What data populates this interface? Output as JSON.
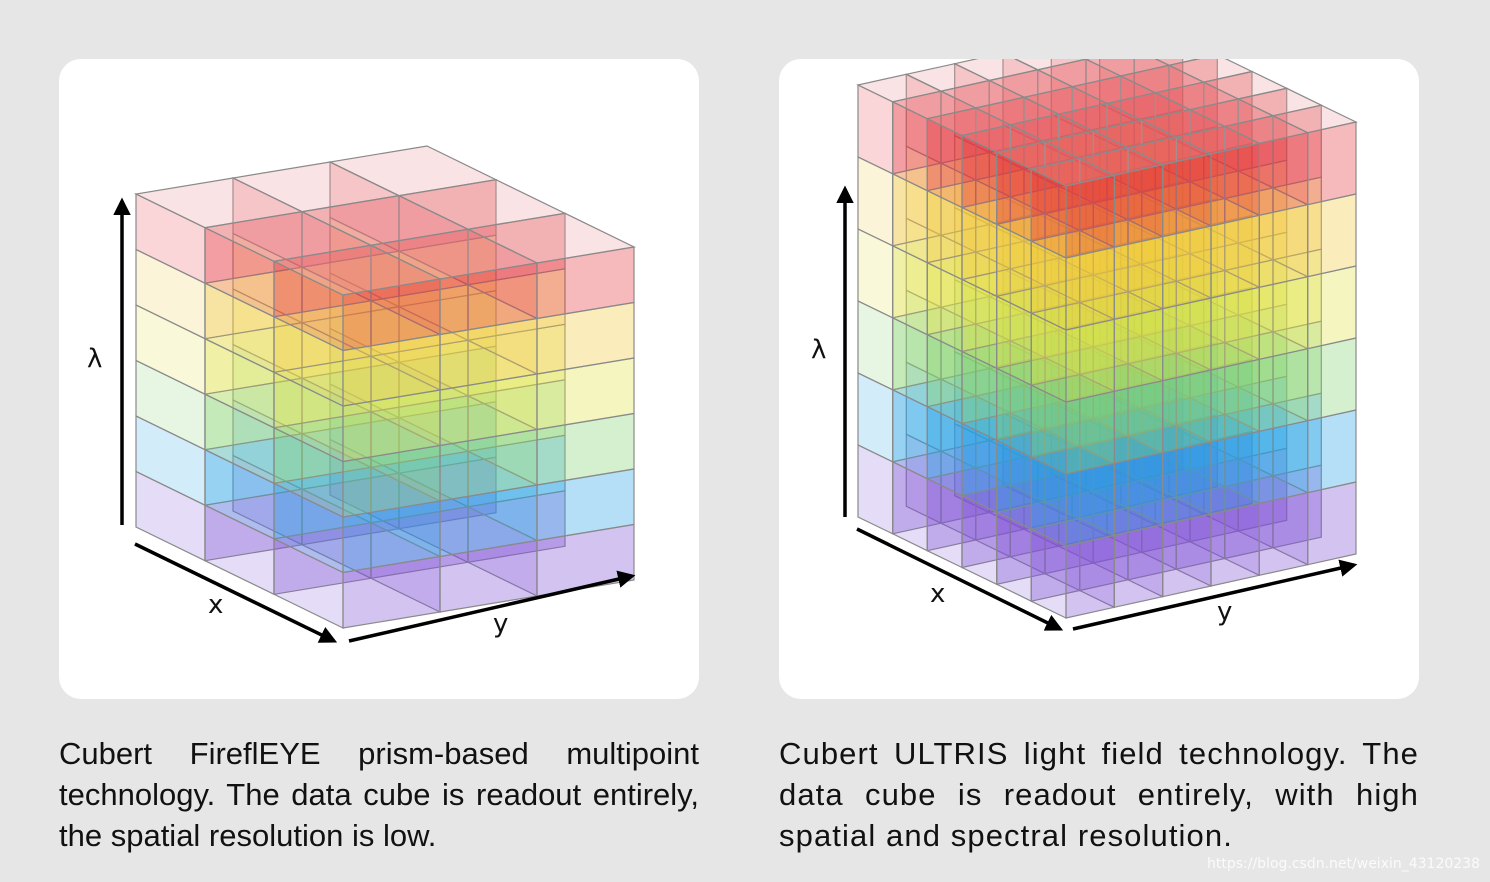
{
  "panels": [
    {
      "id": "firefleye",
      "grid_cols": 3,
      "grid_rows": 3,
      "spectral_bands": 6,
      "band_colors": [
        "#7d4fd6",
        "#23a2e6",
        "#85d36f",
        "#dfe244",
        "#f2c73a",
        "#e6343a"
      ],
      "axis_labels": {
        "lambda": "λ",
        "x": "x",
        "y": "y"
      },
      "caption": "Cubert FireflEYE prism-based multipoint technology. The data cube is readout entirely, the spatial resolution is low."
    },
    {
      "id": "ultris",
      "grid_cols": 6,
      "grid_rows": 6,
      "spectral_bands": 6,
      "band_colors": [
        "#7d4fd6",
        "#23a2e6",
        "#85d36f",
        "#dfe244",
        "#f2c73a",
        "#e6343a"
      ],
      "axis_labels": {
        "lambda": "λ",
        "x": "x",
        "y": "y"
      },
      "caption": "Cubert ULTRIS light field technology. The data cube is readout entirely, with high spatial and spectral resolution."
    }
  ],
  "watermark": "https://blog.csdn.net/weixin_43120238"
}
